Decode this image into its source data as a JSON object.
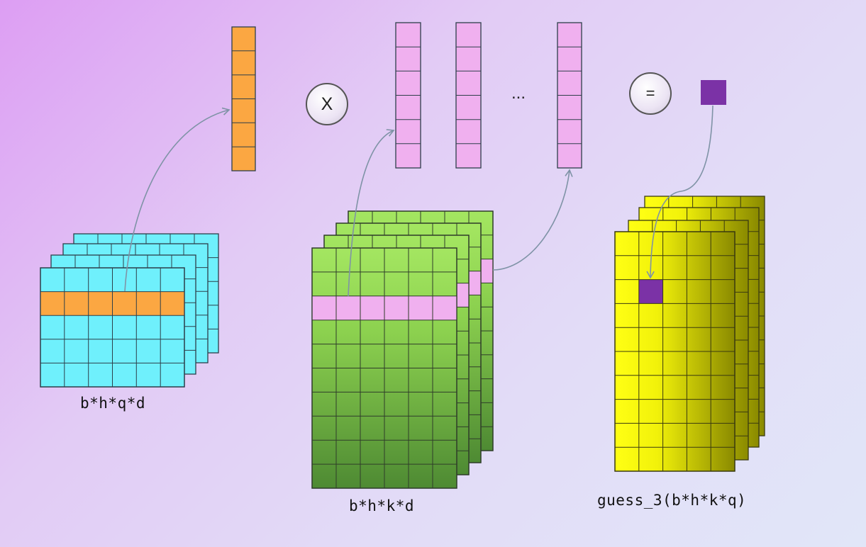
{
  "labels": {
    "query": "b*h*q*d",
    "key": "b*h*k*d",
    "result": "guess_3(b*h*k*q)"
  },
  "operators": {
    "multiply": "X",
    "equals": "=",
    "ellipsis": "..."
  },
  "colors": {
    "query_tensor": "#6ff0fc",
    "query_row": "#fba742",
    "key_tensor_top": "#a4e661",
    "key_tensor_bottom": "#4e8a33",
    "key_row": "#f0b0ef",
    "result_left": "#ffff14",
    "result_right": "#8a8a00",
    "result_cell": "#7b32a6"
  }
}
